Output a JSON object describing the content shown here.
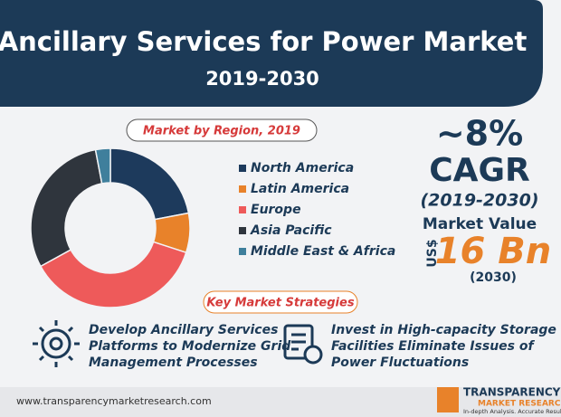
{
  "header": {
    "title": "Ancillary Services for Power Market",
    "years": "2019-2030"
  },
  "chart_data": {
    "type": "pie",
    "donut": true,
    "title": "Market by Region, 2019",
    "categories": [
      "North America",
      "Latin America",
      "Europe",
      "Asia Pacific",
      "Middle East & Africa"
    ],
    "values": [
      22,
      8,
      37,
      30,
      3
    ],
    "colors": [
      "#1d3a5c",
      "#e8822a",
      "#ee5a5a",
      "#2f353d",
      "#3f7f9c"
    ]
  },
  "cagr": {
    "value": "~8%",
    "label": "CAGR",
    "period": "(2019-2030)",
    "market_label": "Market Value",
    "currency": "US$",
    "amount": "16 Bn",
    "year": "(2030)"
  },
  "strategies": {
    "title": "Key Market Strategies",
    "items": [
      [
        "Develop Ancillary Services",
        "Platforms to Modernize Grid",
        "Management Processes"
      ],
      [
        "Invest in High-capacity Storage",
        "Facilities Eliminate Issues of",
        "Power Fluctuations"
      ]
    ]
  },
  "footer": {
    "url": "www.transparencymarketresearch.com",
    "brand": "TRANSPARENCY",
    "brand2": "MARKET RESEARCH",
    "tagline": "In-depth Analysis. Accurate Results"
  }
}
